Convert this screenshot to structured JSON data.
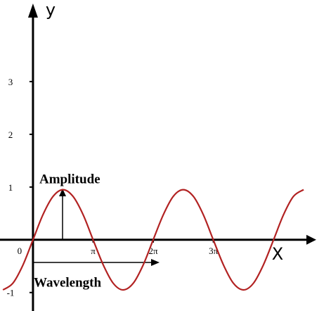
{
  "chart_data": {
    "type": "line",
    "x_label": "X",
    "y_label": "y",
    "annotations": [
      "Amplitude",
      "Wavelength"
    ],
    "x": [
      -1.57,
      -1.05,
      -0.52,
      0,
      0.52,
      1.05,
      1.57,
      2.09,
      2.62,
      3.14,
      3.67,
      4.19,
      4.71,
      5.24,
      5.76,
      6.28,
      6.81,
      7.33,
      7.85,
      8.38,
      8.9,
      9.42,
      9.95,
      10.47,
      11.0,
      11.52,
      12.04,
      12.57,
      13.09,
      13.61,
      14.14
    ],
    "series": [
      {
        "color": "#b22222",
        "values": [
          -0.95,
          -0.823,
          -0.475,
          0,
          0.475,
          0.823,
          0.95,
          0.823,
          0.475,
          0,
          -0.475,
          -0.823,
          -0.95,
          -0.823,
          -0.475,
          0,
          0.475,
          0.823,
          0.95,
          0.823,
          0.475,
          0,
          -0.475,
          -0.823,
          -0.95,
          -0.823,
          -0.475,
          0,
          0.475,
          0.823,
          0.95
        ]
      }
    ],
    "xlim": [
      -1.65,
      14.8
    ],
    "ylim": [
      -1.35,
      4.48
    ],
    "xticks": [
      0,
      {
        "value": 3.14159,
        "label": "π"
      },
      {
        "value": 6.28319,
        "label": "2π"
      },
      {
        "value": 9.42478,
        "label": "3π"
      }
    ],
    "yticks": [
      -1,
      1,
      2,
      3
    ]
  }
}
